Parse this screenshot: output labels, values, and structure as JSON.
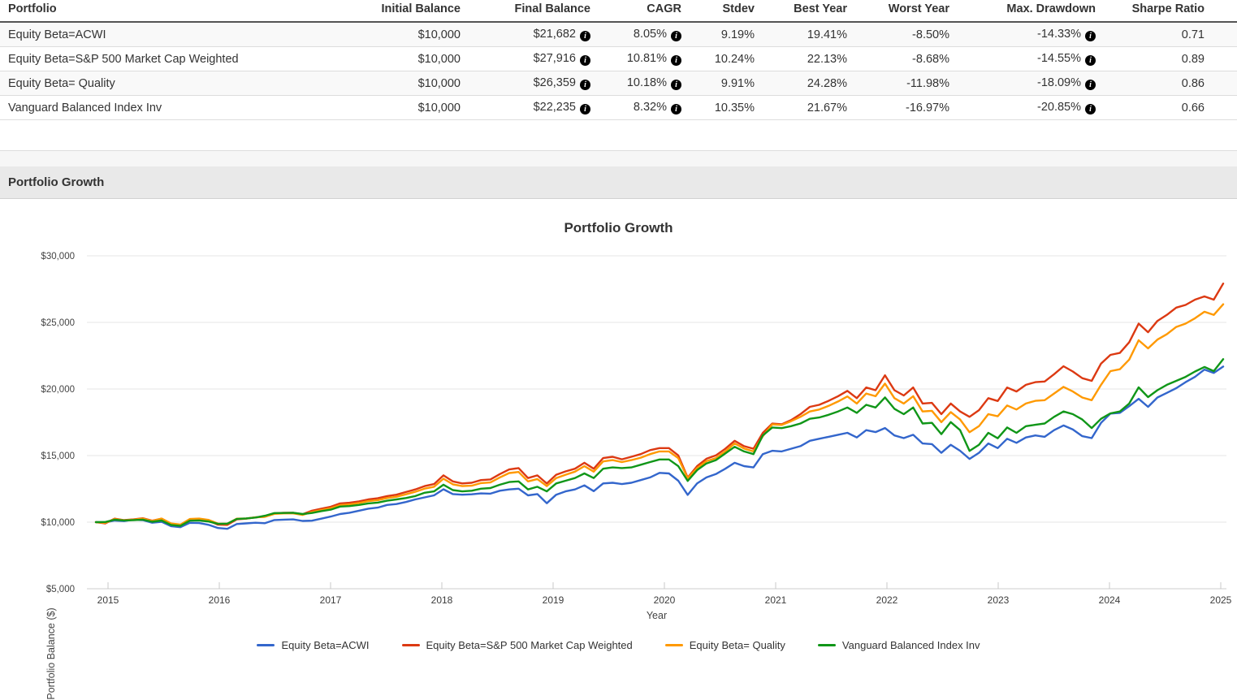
{
  "table": {
    "columns": [
      "Portfolio",
      "Initial Balance",
      "Final Balance",
      "CAGR",
      "Stdev",
      "Best Year",
      "Worst Year",
      "Max. Drawdown",
      "Sharpe Ratio"
    ],
    "rows": [
      {
        "name": "Equity Beta=ACWI",
        "initial": "$10,000",
        "final": "$21,682",
        "cagr": "8.05%",
        "stdev": "9.19%",
        "best": "19.41%",
        "worst": "-8.50%",
        "max_dd": "-14.33%",
        "sharpe": "0.71"
      },
      {
        "name": "Equity Beta=S&P 500 Market Cap Weighted",
        "initial": "$10,000",
        "final": "$27,916",
        "cagr": "10.81%",
        "stdev": "10.24%",
        "best": "22.13%",
        "worst": "-8.68%",
        "max_dd": "-14.55%",
        "sharpe": "0.89"
      },
      {
        "name": "Equity Beta= Quality",
        "initial": "$10,000",
        "final": "$26,359",
        "cagr": "10.18%",
        "stdev": "9.91%",
        "best": "24.28%",
        "worst": "-11.98%",
        "max_dd": "-18.09%",
        "sharpe": "0.86"
      },
      {
        "name": "Vanguard Balanced Index Inv",
        "initial": "$10,000",
        "final": "$22,235",
        "cagr": "8.32%",
        "stdev": "10.35%",
        "best": "21.67%",
        "worst": "-16.97%",
        "max_dd": "-20.85%",
        "sharpe": "0.66"
      }
    ]
  },
  "section": {
    "title": "Portfolio Growth"
  },
  "chart_data": {
    "type": "line",
    "title": "Portfolio Growth",
    "xlabel": "Year",
    "ylabel": "Portfolio Balance ($)",
    "ylim": [
      5000,
      30000
    ],
    "y_ticks": [
      30000,
      25000,
      20000,
      15000,
      10000,
      5000
    ],
    "x_tick_years": [
      2015,
      2016,
      2017,
      2018,
      2019,
      2020,
      2021,
      2022,
      2023,
      2024,
      2025
    ],
    "x_start": "2014-12",
    "x_frequency": "monthly",
    "grid": "horizontal",
    "legend_position": "bottom",
    "series": [
      {
        "name": "Equity Beta=ACWI",
        "color": "#3366cc",
        "values": [
          10000,
          9980,
          10120,
          10080,
          10180,
          10150,
          9960,
          10030,
          9700,
          9620,
          9950,
          9930,
          9800,
          9560,
          9500,
          9860,
          9910,
          9960,
          9920,
          10160,
          10190,
          10210,
          10090,
          10110,
          10260,
          10420,
          10610,
          10710,
          10860,
          11010,
          11090,
          11290,
          11360,
          11510,
          11710,
          11860,
          12010,
          12470,
          12110,
          12060,
          12090,
          12160,
          12140,
          12360,
          12460,
          12510,
          12010,
          12110,
          11420,
          12060,
          12310,
          12460,
          12760,
          12330,
          12910,
          12960,
          12860,
          12960,
          13160,
          13360,
          13700,
          13660,
          13110,
          12050,
          12910,
          13360,
          13610,
          14010,
          14460,
          14210,
          14110,
          15110,
          15360,
          15310,
          15510,
          15710,
          16110,
          16260,
          16410,
          16560,
          16710,
          16360,
          16910,
          16760,
          17070,
          16510,
          16310,
          16560,
          15910,
          15860,
          15210,
          15810,
          15360,
          14750,
          15210,
          15910,
          15560,
          16260,
          15960,
          16360,
          16510,
          16410,
          16910,
          17260,
          16960,
          16460,
          16310,
          17460,
          18150,
          18210,
          18710,
          19260,
          18660,
          19360,
          19710,
          20060,
          20510,
          20910,
          21460,
          21210,
          21682
        ]
      },
      {
        "name": "Equity Beta=S&P 500 Market Cap Weighted",
        "color": "#dc3912",
        "values": [
          10000,
          9910,
          10260,
          10150,
          10210,
          10290,
          10110,
          10260,
          9870,
          9760,
          10210,
          10240,
          10110,
          9810,
          9790,
          10210,
          10260,
          10360,
          10410,
          10660,
          10710,
          10710,
          10590,
          10860,
          11010,
          11160,
          11410,
          11460,
          11560,
          11710,
          11790,
          11960,
          12060,
          12260,
          12460,
          12710,
          12860,
          13510,
          13060,
          12910,
          12960,
          13160,
          13210,
          13610,
          13960,
          14060,
          13310,
          13510,
          12900,
          13560,
          13810,
          14010,
          14460,
          14010,
          14810,
          14910,
          14720,
          14910,
          15110,
          15410,
          15560,
          15560,
          15010,
          13350,
          14210,
          14760,
          15010,
          15510,
          16110,
          15710,
          15510,
          16710,
          17400,
          17350,
          17660,
          18110,
          18660,
          18810,
          19110,
          19460,
          19860,
          19310,
          20110,
          19910,
          21030,
          19910,
          19510,
          20110,
          18910,
          18960,
          18110,
          18910,
          18310,
          17910,
          18410,
          19310,
          19100,
          20110,
          19810,
          20310,
          20510,
          20560,
          21110,
          21710,
          21310,
          20810,
          20610,
          21910,
          22560,
          22710,
          23510,
          24910,
          24260,
          25110,
          25560,
          26110,
          26310,
          26710,
          26950,
          26710,
          27916
        ]
      },
      {
        "name": "Equity Beta= Quality",
        "color": "#ff9900",
        "values": [
          10000,
          9950,
          10230,
          10140,
          10180,
          10260,
          10090,
          10270,
          9900,
          9820,
          10240,
          10270,
          10170,
          9890,
          9880,
          10260,
          10280,
          10360,
          10400,
          10620,
          10660,
          10660,
          10540,
          10760,
          10910,
          11040,
          11280,
          11330,
          11440,
          11580,
          11650,
          11810,
          11910,
          12090,
          12280,
          12520,
          12660,
          13260,
          12840,
          12710,
          12740,
          12930,
          12980,
          13360,
          13690,
          13770,
          13060,
          13240,
          12710,
          13310,
          13560,
          13790,
          14210,
          13790,
          14560,
          14660,
          14510,
          14660,
          14840,
          15110,
          15310,
          15310,
          14810,
          13300,
          14060,
          14580,
          14810,
          15310,
          15910,
          15530,
          15310,
          16460,
          17340,
          17300,
          17580,
          17910,
          18310,
          18460,
          18730,
          19060,
          19440,
          18910,
          19660,
          19460,
          20400,
          19310,
          18910,
          19460,
          18310,
          18360,
          17510,
          18260,
          17710,
          16750,
          17210,
          18110,
          17950,
          18760,
          18460,
          18910,
          19110,
          19160,
          19660,
          20160,
          19810,
          19360,
          19160,
          20310,
          21340,
          21480,
          22210,
          23660,
          23050,
          23710,
          24110,
          24660,
          24910,
          25310,
          25800,
          25560,
          26359
        ]
      },
      {
        "name": "Vanguard Balanced Index Inv",
        "color": "#109618",
        "values": [
          10000,
          10010,
          10180,
          10130,
          10150,
          10190,
          10030,
          10120,
          9790,
          9720,
          10110,
          10130,
          10050,
          9870,
          9890,
          10240,
          10280,
          10350,
          10480,
          10680,
          10690,
          10710,
          10610,
          10690,
          10830,
          10940,
          11170,
          11210,
          11290,
          11410,
          11470,
          11610,
          11710,
          11810,
          11960,
          12210,
          12310,
          12810,
          12410,
          12310,
          12360,
          12510,
          12560,
          12810,
          13010,
          13060,
          12460,
          12660,
          12310,
          12910,
          13110,
          13310,
          13660,
          13310,
          14010,
          14110,
          14060,
          14110,
          14310,
          14510,
          14710,
          14710,
          14210,
          13100,
          13910,
          14410,
          14660,
          15160,
          15660,
          15310,
          15110,
          16510,
          17110,
          17060,
          17210,
          17410,
          17760,
          17860,
          18060,
          18310,
          18610,
          18210,
          18810,
          18610,
          19365,
          18510,
          18110,
          18610,
          17410,
          17460,
          16610,
          17510,
          16910,
          15350,
          15810,
          16710,
          16300,
          17110,
          16710,
          17210,
          17310,
          17410,
          17910,
          18310,
          18110,
          17710,
          17070,
          17760,
          18170,
          18310,
          18910,
          20120,
          19390,
          19910,
          20310,
          20610,
          20910,
          21310,
          21650,
          21340,
          22235
        ]
      }
    ]
  }
}
